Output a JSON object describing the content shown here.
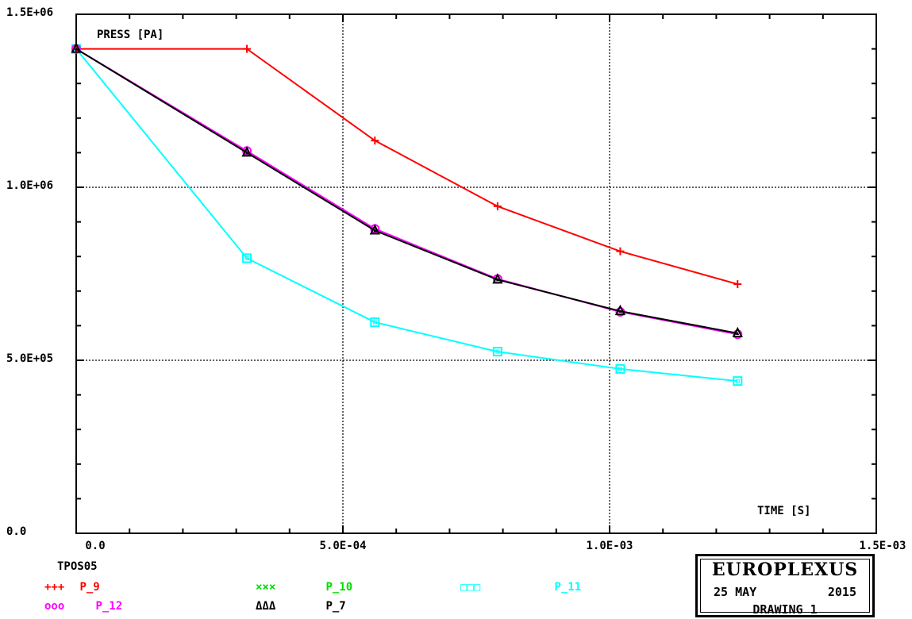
{
  "chart_data": {
    "type": "line",
    "title": "",
    "ylabel": "PRESS [PA]",
    "xlabel": "TIME [S]",
    "xlim": [
      0,
      0.0015
    ],
    "ylim": [
      0,
      1500000
    ],
    "x_ticks": [
      "0.0",
      "5.0E-04",
      "1.0E-03",
      "1.5E-03"
    ],
    "y_ticks": [
      "0.0",
      "5.0E+05",
      "1.0E+06",
      "1.5E+06"
    ],
    "grid": true,
    "series": [
      {
        "name": "P_9",
        "color": "#ff0000",
        "marker": "+",
        "x": [
          0,
          0.00032,
          0.00056,
          0.00079,
          0.00102,
          0.00124
        ],
        "y": [
          1400000,
          1400000,
          1135000,
          945000,
          815000,
          720000
        ]
      },
      {
        "name": "P_10",
        "color": "#00dd00",
        "marker": "x",
        "x": [],
        "y": []
      },
      {
        "name": "P_11",
        "color": "#00ffff",
        "marker": "square",
        "x": [
          0,
          0.00032,
          0.00056,
          0.00079,
          0.00102,
          0.00124
        ],
        "y": [
          1400000,
          795000,
          610000,
          525000,
          475000,
          440000
        ]
      },
      {
        "name": "P_12",
        "color": "#ff00ff",
        "marker": "circle",
        "x": [
          0,
          0.00032,
          0.00056,
          0.00079,
          0.00102,
          0.00124
        ],
        "y": [
          1400000,
          1105000,
          880000,
          735000,
          640000,
          575000
        ]
      },
      {
        "name": "P_7",
        "color": "#000000",
        "marker": "triangle",
        "x": [
          0,
          0.00032,
          0.00056,
          0.00079,
          0.00102,
          0.00124
        ],
        "y": [
          1400000,
          1100000,
          875000,
          733000,
          642000,
          578000
        ]
      }
    ]
  },
  "legend": {
    "case_name": "TPOS05",
    "items": [
      {
        "symbol": "+++",
        "label": "P_9",
        "color": "#ff0000"
      },
      {
        "symbol": "×××",
        "label": "P_10",
        "color": "#00dd00"
      },
      {
        "symbol": "□□□",
        "label": "P_11",
        "color": "#00ffff"
      },
      {
        "symbol": "ooo",
        "label": "P_12",
        "color": "#ff00ff"
      },
      {
        "symbol": "ΔΔΔ",
        "label": "P_7",
        "color": "#000000"
      }
    ]
  },
  "info_box": {
    "title": "EUROPLEXUS",
    "date": "25 MAY",
    "year": "2015",
    "drawing": "DRAWING  1"
  }
}
